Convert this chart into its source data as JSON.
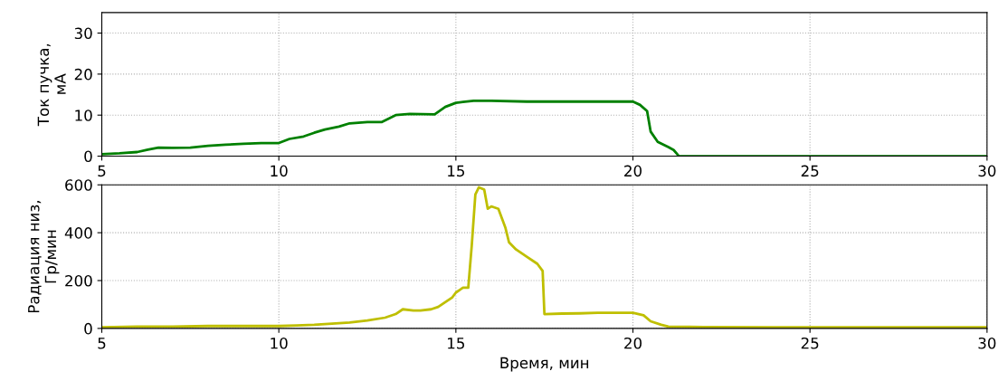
{
  "chart_data": [
    {
      "type": "line",
      "ylabel": "Ток пучка,\nмА",
      "xlim": [
        5,
        30
      ],
      "xticks": [
        5,
        10,
        15,
        20,
        25,
        30
      ],
      "ylim": [
        0,
        35
      ],
      "yticks": [
        0,
        10,
        20,
        30
      ],
      "grid": true,
      "marker": "none",
      "line_style": "solid",
      "series": [
        {
          "color": "#008000",
          "x": [
            5,
            5.5,
            6,
            6.3,
            6.6,
            7,
            7.5,
            8,
            8.5,
            9,
            9.5,
            10,
            10.3,
            10.7,
            11,
            11.3,
            11.7,
            12,
            12.5,
            12.9,
            13.3,
            13.7,
            14.4,
            14.7,
            15,
            15.2,
            15.5,
            16,
            17,
            18,
            19,
            20,
            20.2,
            20.4,
            20.5,
            20.7,
            21,
            21.15,
            21.3,
            22,
            25,
            30
          ],
          "values": [
            0.5,
            0.7,
            1,
            1.6,
            2.1,
            2,
            2.1,
            2.5,
            2.8,
            3,
            3.2,
            3.2,
            4.2,
            4.8,
            5.7,
            6.5,
            7.2,
            8,
            8.3,
            8.3,
            10,
            10.3,
            10.2,
            12,
            13,
            13.2,
            13.5,
            13.5,
            13.3,
            13.3,
            13.3,
            13.3,
            12.5,
            11,
            6,
            3.5,
            2.2,
            1.5,
            0,
            0,
            0,
            0
          ]
        }
      ]
    },
    {
      "type": "line",
      "ylabel": "Радиация низ,\nГр/мин",
      "xlabel": "Время, мин",
      "xlim": [
        5,
        30
      ],
      "xticks": [
        5,
        10,
        15,
        20,
        25,
        30
      ],
      "ylim": [
        0,
        600
      ],
      "yticks": [
        0,
        200,
        400,
        600
      ],
      "grid": true,
      "marker": "none",
      "line_style": "solid",
      "series": [
        {
          "color": "#bfbf00",
          "x": [
            5,
            6,
            7,
            8,
            9,
            10,
            10.5,
            11,
            11.5,
            12,
            12.5,
            13,
            13.3,
            13.5,
            13.8,
            14,
            14.3,
            14.5,
            14.7,
            14.9,
            15,
            15.2,
            15.35,
            15.45,
            15.55,
            15.65,
            15.8,
            15.9,
            16,
            16.2,
            16.4,
            16.5,
            16.7,
            17,
            17.3,
            17.45,
            17.5,
            18,
            18.5,
            19,
            19.5,
            20,
            20.3,
            20.5,
            20.8,
            21,
            22,
            24,
            26,
            28,
            30
          ],
          "values": [
            5,
            8,
            8,
            10,
            10,
            10,
            12,
            15,
            20,
            25,
            33,
            45,
            60,
            80,
            75,
            75,
            80,
            90,
            110,
            130,
            150,
            170,
            170,
            350,
            560,
            590,
            580,
            500,
            510,
            500,
            420,
            360,
            330,
            300,
            270,
            240,
            60,
            62,
            63,
            65,
            65,
            65,
            55,
            30,
            15,
            8,
            6,
            5,
            5,
            5,
            5
          ]
        }
      ]
    }
  ]
}
